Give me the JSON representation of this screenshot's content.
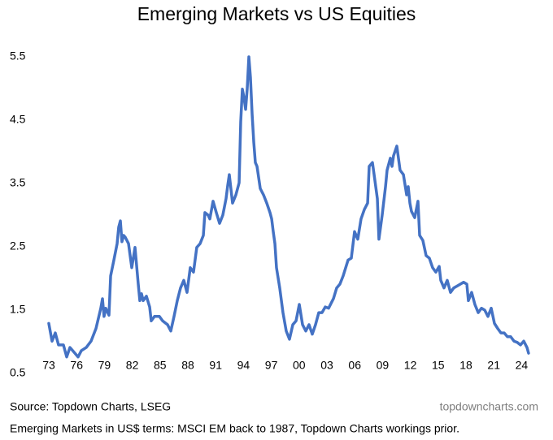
{
  "chart_data": {
    "type": "line",
    "title": "Emerging Markets vs US Equities",
    "source": "Source: Topdown Charts, LSEG",
    "credit": "topdowncharts.com",
    "footnote": "Emerging Markets in US$ terms: MSCI EM back to 1987, Topdown Charts workings prior.",
    "x": [
      1973.0,
      1973.35,
      1973.7,
      1974.05,
      1974.58,
      1974.93,
      1975.28,
      1975.81,
      1976.16,
      1976.51,
      1977.04,
      1977.56,
      1978.09,
      1978.61,
      1978.79,
      1978.96,
      1979.14,
      1979.49,
      1979.67,
      1980.02,
      1980.37,
      1980.54,
      1980.72,
      1980.89,
      1981.07,
      1981.25,
      1981.6,
      1981.95,
      1982.3,
      1982.65,
      1982.82,
      1983.0,
      1983.18,
      1983.53,
      1983.88,
      1984.05,
      1984.4,
      1984.93,
      1985.28,
      1985.81,
      1986.16,
      1986.51,
      1986.86,
      1987.21,
      1987.56,
      1987.91,
      1988.26,
      1988.61,
      1988.96,
      1989.32,
      1989.67,
      1989.84,
      1990.19,
      1990.37,
      1990.72,
      1991.07,
      1991.42,
      1991.77,
      1992.12,
      1992.3,
      1992.47,
      1992.82,
      1993.18,
      1993.53,
      1993.7,
      1993.88,
      1994.05,
      1994.23,
      1994.4,
      1994.58,
      1994.75,
      1994.93,
      1995.11,
      1995.28,
      1995.46,
      1995.81,
      1996.16,
      1996.51,
      1996.86,
      1997.04,
      1997.21,
      1997.39,
      1997.56,
      1997.91,
      1998.26,
      1998.61,
      1998.96,
      1999.32,
      1999.67,
      2000.02,
      2000.37,
      2000.72,
      2001.07,
      2001.42,
      2001.77,
      2002.12,
      2002.47,
      2002.82,
      2003.18,
      2003.7,
      2004.05,
      2004.4,
      2004.75,
      2005.28,
      2005.63,
      2005.98,
      2006.33,
      2006.68,
      2007.04,
      2007.39,
      2007.56,
      2007.91,
      2008.09,
      2008.44,
      2008.61,
      2008.96,
      2009.32,
      2009.49,
      2009.84,
      2010.02,
      2010.19,
      2010.54,
      2010.89,
      2011.25,
      2011.6,
      2011.77,
      2011.95,
      2012.12,
      2012.47,
      2012.82,
      2013.0,
      2013.35,
      2013.7,
      2014.05,
      2014.4,
      2014.75,
      2015.11,
      2015.28,
      2015.63,
      2015.98,
      2016.33,
      2016.68,
      2017.04,
      2017.39,
      2017.74,
      2018.09,
      2018.26,
      2018.61,
      2018.96,
      2019.32,
      2019.67,
      2020.02,
      2020.37,
      2020.72,
      2021.07,
      2021.42,
      2021.77,
      2022.12,
      2022.47,
      2022.82,
      2023.18,
      2023.53,
      2023.88,
      2024.23,
      2024.58,
      2024.75
    ],
    "series": [
      {
        "name": "EM vs US",
        "color": "#4472c4",
        "values": [
          1.29,
          1.01,
          1.14,
          0.95,
          0.95,
          0.76,
          0.91,
          0.82,
          0.76,
          0.86,
          0.91,
          1.01,
          1.21,
          1.53,
          1.68,
          1.4,
          1.53,
          1.42,
          2.04,
          2.29,
          2.55,
          2.81,
          2.91,
          2.58,
          2.68,
          2.65,
          2.55,
          2.17,
          2.49,
          1.91,
          1.65,
          1.76,
          1.65,
          1.72,
          1.55,
          1.33,
          1.4,
          1.4,
          1.33,
          1.27,
          1.17,
          1.4,
          1.65,
          1.85,
          1.97,
          1.78,
          2.17,
          2.1,
          2.49,
          2.55,
          2.68,
          3.04,
          3.0,
          2.94,
          3.22,
          3.04,
          2.87,
          3.0,
          3.26,
          3.47,
          3.64,
          3.19,
          3.32,
          3.51,
          4.47,
          4.99,
          4.86,
          4.67,
          4.99,
          5.5,
          5.18,
          4.6,
          4.15,
          3.83,
          3.77,
          3.42,
          3.32,
          3.19,
          3.04,
          2.94,
          2.74,
          2.55,
          2.17,
          1.85,
          1.46,
          1.17,
          1.04,
          1.27,
          1.33,
          1.59,
          1.27,
          1.17,
          1.27,
          1.12,
          1.27,
          1.46,
          1.46,
          1.55,
          1.53,
          1.68,
          1.85,
          1.91,
          2.04,
          2.29,
          2.32,
          2.74,
          2.62,
          2.94,
          3.09,
          3.19,
          3.77,
          3.83,
          3.64,
          3.26,
          2.62,
          3.0,
          3.45,
          3.71,
          3.9,
          3.77,
          3.94,
          4.09,
          3.71,
          3.64,
          3.32,
          3.45,
          3.19,
          3.06,
          2.96,
          3.22,
          2.68,
          2.6,
          2.36,
          2.32,
          2.17,
          2.1,
          2.19,
          1.97,
          1.85,
          1.97,
          1.78,
          1.85,
          1.88,
          1.91,
          1.94,
          1.91,
          1.65,
          1.78,
          1.59,
          1.46,
          1.53,
          1.5,
          1.4,
          1.53,
          1.29,
          1.21,
          1.14,
          1.14,
          1.08,
          1.08,
          1.01,
          0.99,
          0.95,
          1.01,
          0.91,
          0.82
        ]
      }
    ],
    "xlim": [
      1972.5,
      2025.5
    ],
    "xticks": [
      {
        "value": 1973,
        "label": "73"
      },
      {
        "value": 1976,
        "label": "76"
      },
      {
        "value": 1979,
        "label": "79"
      },
      {
        "value": 1982,
        "label": "82"
      },
      {
        "value": 1985,
        "label": "85"
      },
      {
        "value": 1988,
        "label": "88"
      },
      {
        "value": 1991,
        "label": "91"
      },
      {
        "value": 1994,
        "label": "94"
      },
      {
        "value": 1997,
        "label": "97"
      },
      {
        "value": 2000,
        "label": "00"
      },
      {
        "value": 2003,
        "label": "03"
      },
      {
        "value": 2006,
        "label": "06"
      },
      {
        "value": 2009,
        "label": "09"
      },
      {
        "value": 2012,
        "label": "12"
      },
      {
        "value": 2015,
        "label": "15"
      },
      {
        "value": 2018,
        "label": "18"
      },
      {
        "value": 2021,
        "label": "21"
      },
      {
        "value": 2024,
        "label": "24"
      }
    ],
    "ylim": [
      0.5,
      5.5
    ],
    "yticks": [
      0.5,
      1.5,
      2.5,
      3.5,
      4.5,
      5.5
    ],
    "grid": false
  }
}
